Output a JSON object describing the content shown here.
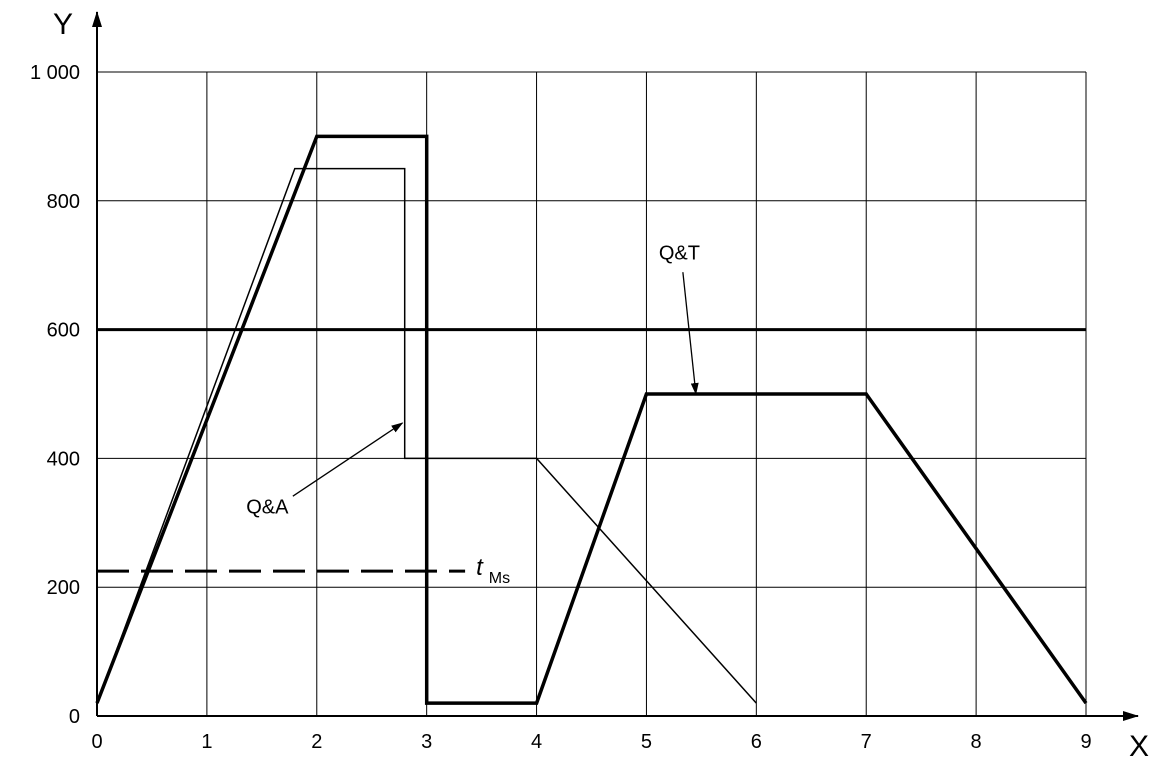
{
  "chart_data": {
    "type": "line",
    "xlabel": "X",
    "ylabel": "Y",
    "xlim": [
      0,
      9
    ],
    "ylim": [
      0,
      1000
    ],
    "x_ticks": [
      0,
      1,
      2,
      3,
      4,
      5,
      6,
      7,
      8,
      9
    ],
    "y_ticks": [
      0,
      200,
      400,
      600,
      800,
      1000
    ],
    "x_tick_labels": [
      "0",
      "1",
      "2",
      "3",
      "4",
      "5",
      "6",
      "7",
      "8",
      "9"
    ],
    "y_tick_labels": [
      "0",
      "200",
      "400",
      "600",
      "800",
      "1 000"
    ],
    "grid": true,
    "series": [
      {
        "name": "Q&T",
        "style": "thick",
        "points": [
          [
            0,
            20
          ],
          [
            2,
            900
          ],
          [
            3,
            900
          ],
          [
            3,
            20
          ],
          [
            4,
            20
          ],
          [
            5,
            500
          ],
          [
            7,
            500
          ],
          [
            9,
            20
          ]
        ]
      },
      {
        "name": "Q&A",
        "style": "thin",
        "points": [
          [
            0,
            20
          ],
          [
            1.8,
            850
          ],
          [
            2.8,
            850
          ],
          [
            2.8,
            400
          ],
          [
            4,
            400
          ],
          [
            6,
            20
          ]
        ]
      },
      {
        "name": "",
        "style": "thick-horizontal",
        "points": [
          [
            0,
            600
          ],
          [
            9,
            600
          ]
        ]
      },
      {
        "name": "tMs",
        "style": "dashed",
        "points": [
          [
            0,
            225
          ],
          [
            3.35,
            225
          ]
        ]
      }
    ],
    "annotations": [
      {
        "text": "Q&T",
        "text_at": [
          5.3,
          720
        ],
        "arrow_to": [
          5.45,
          500
        ]
      },
      {
        "text": "Q&A",
        "text_at": [
          1.55,
          325
        ],
        "arrow_to": [
          2.78,
          455
        ]
      },
      {
        "text": "t",
        "subscript": "Ms",
        "text_at": [
          3.45,
          225
        ]
      }
    ]
  }
}
